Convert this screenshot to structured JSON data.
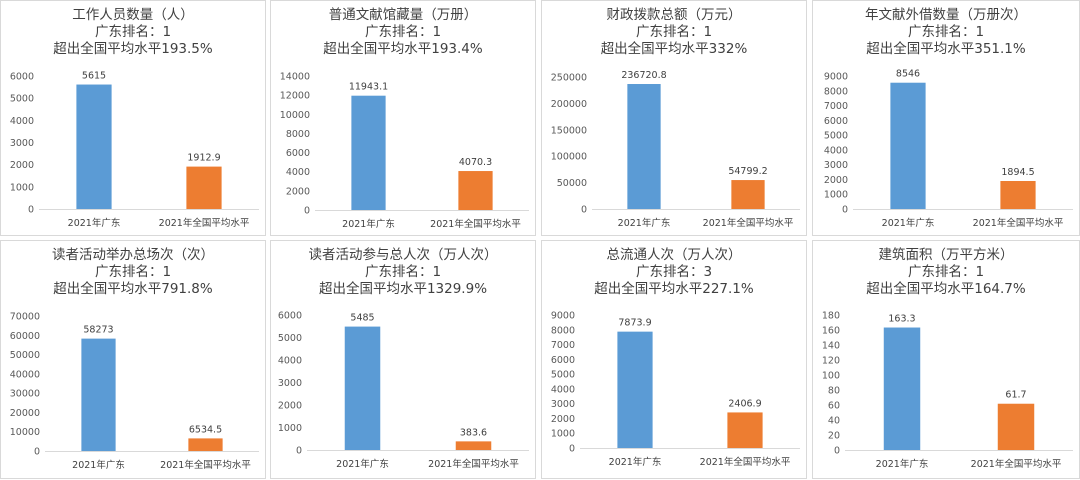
{
  "chart_data": [
    {
      "type": "bar",
      "title": "工作人员数量（人）",
      "subtitle": [
        "广东排名：1",
        "超出全国平均水平193.5%"
      ],
      "categories": [
        "2021年广东",
        "2021年全国平均水平"
      ],
      "values": [
        5615,
        1912.9
      ],
      "value_labels": [
        "5615",
        "1912.9"
      ],
      "ylim": [
        0,
        6000
      ],
      "yticks": [
        "0",
        "1000",
        "2000",
        "3000",
        "4000",
        "5000",
        "6000"
      ],
      "colors": [
        "#5b9bd5",
        "#ed7d31"
      ]
    },
    {
      "type": "bar",
      "title": "普通文献馆藏量（万册）",
      "subtitle": [
        "广东排名：1",
        "超出全国平均水平193.4%"
      ],
      "categories": [
        "2021年广东",
        "2021年全国平均水平"
      ],
      "values": [
        11943.1,
        4070.3
      ],
      "value_labels": [
        "11943.1",
        "4070.3"
      ],
      "ylim": [
        0,
        14000
      ],
      "yticks": [
        "0",
        "2000",
        "4000",
        "6000",
        "8000",
        "10000",
        "12000",
        "14000"
      ],
      "colors": [
        "#5b9bd5",
        "#ed7d31"
      ]
    },
    {
      "type": "bar",
      "title": "财政拨款总额（万元）",
      "subtitle": [
        "广东排名：1",
        "超出全国平均水平332%"
      ],
      "categories": [
        "2021年广东",
        "2021年全国平均水平"
      ],
      "values": [
        236720.8,
        54799.2
      ],
      "value_labels": [
        "236720.8",
        "54799.2"
      ],
      "ylim": [
        0,
        250000
      ],
      "yticks": [
        "0",
        "50000",
        "100000",
        "150000",
        "200000",
        "250000"
      ],
      "colors": [
        "#5b9bd5",
        "#ed7d31"
      ]
    },
    {
      "type": "bar",
      "title": "年文献外借数量（万册次）",
      "subtitle": [
        "广东排名：1",
        "超出全国平均水平351.1%"
      ],
      "categories": [
        "2021年广东",
        "2021年全国平均水平"
      ],
      "values": [
        8546,
        1894.5
      ],
      "value_labels": [
        "8546",
        "1894.5"
      ],
      "ylim": [
        0,
        9000
      ],
      "yticks": [
        "0",
        "1000",
        "2000",
        "3000",
        "4000",
        "5000",
        "6000",
        "7000",
        "8000",
        "9000"
      ],
      "colors": [
        "#5b9bd5",
        "#ed7d31"
      ]
    },
    {
      "type": "bar",
      "title": "读者活动举办总场次（次）",
      "subtitle": [
        "广东排名：1",
        "超出全国平均水平791.8%"
      ],
      "categories": [
        "2021年广东",
        "2021年全国平均水平"
      ],
      "values": [
        58273,
        6534.5
      ],
      "value_labels": [
        "58273",
        "6534.5"
      ],
      "ylim": [
        0,
        70000
      ],
      "yticks": [
        "0",
        "10000",
        "20000",
        "30000",
        "40000",
        "50000",
        "60000",
        "70000"
      ],
      "colors": [
        "#5b9bd5",
        "#ed7d31"
      ]
    },
    {
      "type": "bar",
      "title": "读者活动参与总人次（万人次）",
      "subtitle": [
        "广东排名：1",
        "超出全国平均水平1329.9%"
      ],
      "categories": [
        "2021年广东",
        "2021年全国平均水平"
      ],
      "values": [
        5485,
        383.6
      ],
      "value_labels": [
        "5485",
        "383.6"
      ],
      "ylim": [
        0,
        6000
      ],
      "yticks": [
        "0",
        "1000",
        "2000",
        "3000",
        "4000",
        "5000",
        "6000"
      ],
      "colors": [
        "#5b9bd5",
        "#ed7d31"
      ]
    },
    {
      "type": "bar",
      "title": "总流通人次（万人次）",
      "subtitle": [
        "广东排名：3",
        "超出全国平均水平227.1%"
      ],
      "categories": [
        "2021年广东",
        "2021年全国平均水平"
      ],
      "values": [
        7873.9,
        2406.9
      ],
      "value_labels": [
        "7873.9",
        "2406.9"
      ],
      "ylim": [
        0,
        9000
      ],
      "yticks": [
        "0",
        "1000",
        "2000",
        "3000",
        "4000",
        "5000",
        "6000",
        "7000",
        "8000",
        "9000"
      ],
      "colors": [
        "#5b9bd5",
        "#ed7d31"
      ]
    },
    {
      "type": "bar",
      "title": "建筑面积（万平方米）",
      "subtitle": [
        "广东排名：1",
        "超出全国平均水平164.7%"
      ],
      "categories": [
        "2021年广东",
        "2021年全国平均水平"
      ],
      "values": [
        163.3,
        61.7
      ],
      "value_labels": [
        "163.3",
        "61.7"
      ],
      "ylim": [
        0,
        180
      ],
      "yticks": [
        "0",
        "20",
        "40",
        "60",
        "80",
        "100",
        "120",
        "140",
        "160",
        "180"
      ],
      "colors": [
        "#5b9bd5",
        "#ed7d31"
      ]
    }
  ]
}
